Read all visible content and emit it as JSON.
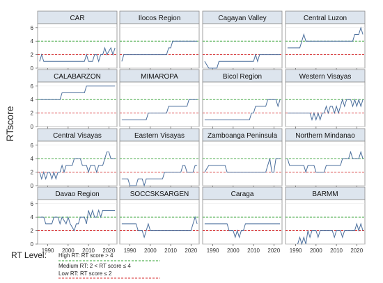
{
  "y_axis_label": "RTscore",
  "x_ticks": [
    "1990",
    "2000",
    "2010",
    "2020"
  ],
  "y_ticks": [
    "0",
    "2",
    "4",
    "6"
  ],
  "colors": {
    "series": "#4a6e9c",
    "high": "#2ca02c",
    "low": "#d62728",
    "header_bg": "#dde5ee",
    "panel_bg": "#ffffff",
    "grid": "#e3e3e3"
  },
  "legend": {
    "title": "RT Level:",
    "items": [
      {
        "label": "High RT: RT score > 4",
        "style": "green-dash"
      },
      {
        "label": "Medium RT:  2 < RT score ≤ 4",
        "style": "none"
      },
      {
        "label": "Low RT:  RT score ≤ 2",
        "style": "red-dash"
      }
    ]
  },
  "chart_data": {
    "type": "line",
    "xlim": [
      1985,
      2024
    ],
    "ylim": [
      0,
      6.6
    ],
    "reference_lines": {
      "high": 4,
      "low": 2
    },
    "panels": [
      {
        "title": "CAR",
        "points": [
          [
            1986,
            1
          ],
          [
            1987,
            2
          ],
          [
            1988,
            1
          ],
          [
            1994,
            1
          ],
          [
            2008,
            1
          ],
          [
            2009,
            2
          ],
          [
            2010,
            1
          ],
          [
            2012,
            1
          ],
          [
            2013,
            2
          ],
          [
            2014,
            2
          ],
          [
            2015,
            1
          ],
          [
            2016,
            2
          ],
          [
            2017,
            2
          ],
          [
            2018,
            3
          ],
          [
            2019,
            2
          ],
          [
            2021,
            3
          ],
          [
            2022,
            2
          ],
          [
            2023,
            3
          ]
        ]
      },
      {
        "title": "Ilocos Region",
        "points": [
          [
            1986,
            1
          ],
          [
            1987,
            2
          ],
          [
            1994,
            2
          ],
          [
            2008,
            2
          ],
          [
            2009,
            3
          ],
          [
            2010,
            3
          ],
          [
            2011,
            4
          ],
          [
            2023,
            4
          ]
        ]
      },
      {
        "title": "Cagayan Valley",
        "points": [
          [
            1986,
            1
          ],
          [
            1988,
            0
          ],
          [
            1990,
            0
          ],
          [
            1992,
            0
          ],
          [
            1993,
            1
          ],
          [
            2010,
            1
          ],
          [
            2011,
            2
          ],
          [
            2012,
            1
          ],
          [
            2013,
            2
          ],
          [
            2014,
            2
          ],
          [
            2015,
            2
          ],
          [
            2023,
            2
          ]
        ]
      },
      {
        "title": "Central Luzon",
        "points": [
          [
            1986,
            3
          ],
          [
            1987,
            3
          ],
          [
            1992,
            3
          ],
          [
            1993,
            4
          ],
          [
            1994,
            5
          ],
          [
            1995,
            4
          ],
          [
            2018,
            4
          ],
          [
            2019,
            5
          ],
          [
            2021,
            5
          ],
          [
            2022,
            6
          ],
          [
            2023,
            5
          ]
        ]
      },
      {
        "title": "CALABARZON",
        "points": [
          [
            1986,
            4
          ],
          [
            1987,
            4
          ],
          [
            1996,
            4
          ],
          [
            1997,
            5
          ],
          [
            2008,
            5
          ],
          [
            2009,
            6
          ],
          [
            2023,
            6
          ]
        ]
      },
      {
        "title": "MIMAROPA",
        "points": [
          [
            1986,
            1
          ],
          [
            1987,
            1
          ],
          [
            1998,
            1
          ],
          [
            1999,
            2
          ],
          [
            2008,
            2
          ],
          [
            2009,
            3
          ],
          [
            2018,
            3
          ],
          [
            2019,
            4
          ],
          [
            2023,
            4
          ]
        ]
      },
      {
        "title": "Bicol Region",
        "points": [
          [
            1986,
            1
          ],
          [
            1987,
            1
          ],
          [
            2008,
            1
          ],
          [
            2009,
            2
          ],
          [
            2010,
            2
          ],
          [
            2011,
            3
          ],
          [
            2016,
            3
          ],
          [
            2017,
            4
          ],
          [
            2021,
            4
          ],
          [
            2022,
            3
          ],
          [
            2023,
            4
          ]
        ]
      },
      {
        "title": "Western Visayas",
        "points": [
          [
            1986,
            2
          ],
          [
            1987,
            2
          ],
          [
            1996,
            2
          ],
          [
            1997,
            2
          ],
          [
            1998,
            1
          ],
          [
            1999,
            2
          ],
          [
            2000,
            1
          ],
          [
            2001,
            2
          ],
          [
            2002,
            1
          ],
          [
            2003,
            2
          ],
          [
            2004,
            2
          ],
          [
            2005,
            3
          ],
          [
            2006,
            2
          ],
          [
            2007,
            3
          ],
          [
            2008,
            3
          ],
          [
            2009,
            2
          ],
          [
            2010,
            3
          ],
          [
            2011,
            2
          ],
          [
            2012,
            3
          ],
          [
            2013,
            4
          ],
          [
            2014,
            3
          ],
          [
            2015,
            4
          ],
          [
            2017,
            4
          ],
          [
            2018,
            3
          ],
          [
            2019,
            4
          ],
          [
            2020,
            3
          ],
          [
            2021,
            4
          ],
          [
            2022,
            3
          ],
          [
            2023,
            4
          ]
        ]
      },
      {
        "title": "Central Visayas",
        "points": [
          [
            1986,
            2
          ],
          [
            1987,
            1
          ],
          [
            1988,
            2
          ],
          [
            1989,
            1
          ],
          [
            1990,
            2
          ],
          [
            1991,
            2
          ],
          [
            1992,
            1
          ],
          [
            1993,
            2
          ],
          [
            1994,
            1
          ],
          [
            1995,
            2
          ],
          [
            1996,
            2
          ],
          [
            1997,
            3
          ],
          [
            1998,
            2
          ],
          [
            1999,
            3
          ],
          [
            2002,
            3
          ],
          [
            2003,
            4
          ],
          [
            2006,
            4
          ],
          [
            2007,
            3
          ],
          [
            2009,
            3
          ],
          [
            2010,
            2
          ],
          [
            2011,
            3
          ],
          [
            2013,
            3
          ],
          [
            2014,
            2
          ],
          [
            2015,
            3
          ],
          [
            2016,
            3
          ],
          [
            2017,
            3
          ],
          [
            2018,
            4
          ],
          [
            2019,
            5
          ],
          [
            2020,
            5
          ],
          [
            2021,
            4
          ],
          [
            2023,
            4
          ]
        ]
      },
      {
        "title": "Eastern Visayas",
        "points": [
          [
            1986,
            1
          ],
          [
            1987,
            1
          ],
          [
            1989,
            1
          ],
          [
            1990,
            0
          ],
          [
            1993,
            0
          ],
          [
            1994,
            1
          ],
          [
            1996,
            1
          ],
          [
            1997,
            0
          ],
          [
            1998,
            1
          ],
          [
            2006,
            1
          ],
          [
            2007,
            2
          ],
          [
            2015,
            2
          ],
          [
            2016,
            3
          ],
          [
            2017,
            3
          ],
          [
            2018,
            2
          ],
          [
            2021,
            2
          ],
          [
            2022,
            3
          ],
          [
            2023,
            3
          ]
        ]
      },
      {
        "title": "Zamboanga Peninsula",
        "points": [
          [
            1986,
            2
          ],
          [
            1988,
            3
          ],
          [
            1996,
            3
          ],
          [
            1997,
            2
          ],
          [
            1998,
            2
          ],
          [
            2005,
            2
          ],
          [
            2006,
            2
          ],
          [
            2015,
            2
          ],
          [
            2016,
            2
          ],
          [
            2017,
            3
          ],
          [
            2018,
            4
          ],
          [
            2019,
            2
          ],
          [
            2020,
            2
          ],
          [
            2021,
            4
          ],
          [
            2023,
            4
          ]
        ]
      },
      {
        "title": "Northern Mindanao",
        "points": [
          [
            1986,
            4
          ],
          [
            1987,
            3
          ],
          [
            1994,
            3
          ],
          [
            1995,
            2
          ],
          [
            1996,
            3
          ],
          [
            1999,
            3
          ],
          [
            2000,
            2
          ],
          [
            2004,
            2
          ],
          [
            2005,
            3
          ],
          [
            2012,
            3
          ],
          [
            2013,
            4
          ],
          [
            2016,
            4
          ],
          [
            2017,
            5
          ],
          [
            2018,
            4
          ],
          [
            2021,
            4
          ],
          [
            2022,
            5
          ],
          [
            2023,
            4
          ]
        ]
      },
      {
        "title": "Davao Region",
        "points": [
          [
            1986,
            4
          ],
          [
            1988,
            4
          ],
          [
            1989,
            3
          ],
          [
            1992,
            3
          ],
          [
            1993,
            4
          ],
          [
            1995,
            4
          ],
          [
            1996,
            3
          ],
          [
            1997,
            4
          ],
          [
            1999,
            3
          ],
          [
            2000,
            4
          ],
          [
            2001,
            3
          ],
          [
            2003,
            2
          ],
          [
            2004,
            3
          ],
          [
            2005,
            3
          ],
          [
            2006,
            4
          ],
          [
            2008,
            4
          ],
          [
            2009,
            3
          ],
          [
            2010,
            5
          ],
          [
            2011,
            4
          ],
          [
            2012,
            5
          ],
          [
            2013,
            4
          ],
          [
            2014,
            4
          ],
          [
            2015,
            5
          ],
          [
            2016,
            4
          ],
          [
            2017,
            5
          ],
          [
            2023,
            5
          ]
        ]
      },
      {
        "title": "SOCCSKSARGEN",
        "points": [
          [
            1986,
            3
          ],
          [
            1987,
            3
          ],
          [
            1993,
            3
          ],
          [
            1994,
            2
          ],
          [
            1996,
            2
          ],
          [
            1997,
            1
          ],
          [
            1998,
            2
          ],
          [
            1999,
            3
          ],
          [
            2000,
            2
          ],
          [
            2020,
            2
          ],
          [
            2021,
            3
          ],
          [
            2022,
            4
          ],
          [
            2023,
            3
          ]
        ]
      },
      {
        "title": "Caraga",
        "points": [
          [
            1986,
            3
          ],
          [
            1987,
            3
          ],
          [
            1997,
            3
          ],
          [
            1998,
            2
          ],
          [
            2000,
            2
          ],
          [
            2001,
            1
          ],
          [
            2002,
            2
          ],
          [
            2003,
            1
          ],
          [
            2004,
            2
          ],
          [
            2005,
            2
          ],
          [
            2006,
            3
          ],
          [
            2023,
            3
          ]
        ]
      },
      {
        "title": "BARMM",
        "points": [
          [
            1991,
            0
          ],
          [
            1992,
            1
          ],
          [
            1993,
            0
          ],
          [
            1994,
            1
          ],
          [
            1995,
            0
          ],
          [
            1996,
            2
          ],
          [
            1997,
            1
          ],
          [
            1998,
            2
          ],
          [
            2000,
            2
          ],
          [
            2001,
            1
          ],
          [
            2002,
            2
          ],
          [
            2008,
            2
          ],
          [
            2009,
            1
          ],
          [
            2010,
            2
          ],
          [
            2012,
            2
          ],
          [
            2013,
            1
          ],
          [
            2014,
            2
          ],
          [
            2019,
            2
          ],
          [
            2020,
            3
          ],
          [
            2021,
            2
          ],
          [
            2022,
            3
          ],
          [
            2023,
            2
          ]
        ]
      }
    ]
  }
}
